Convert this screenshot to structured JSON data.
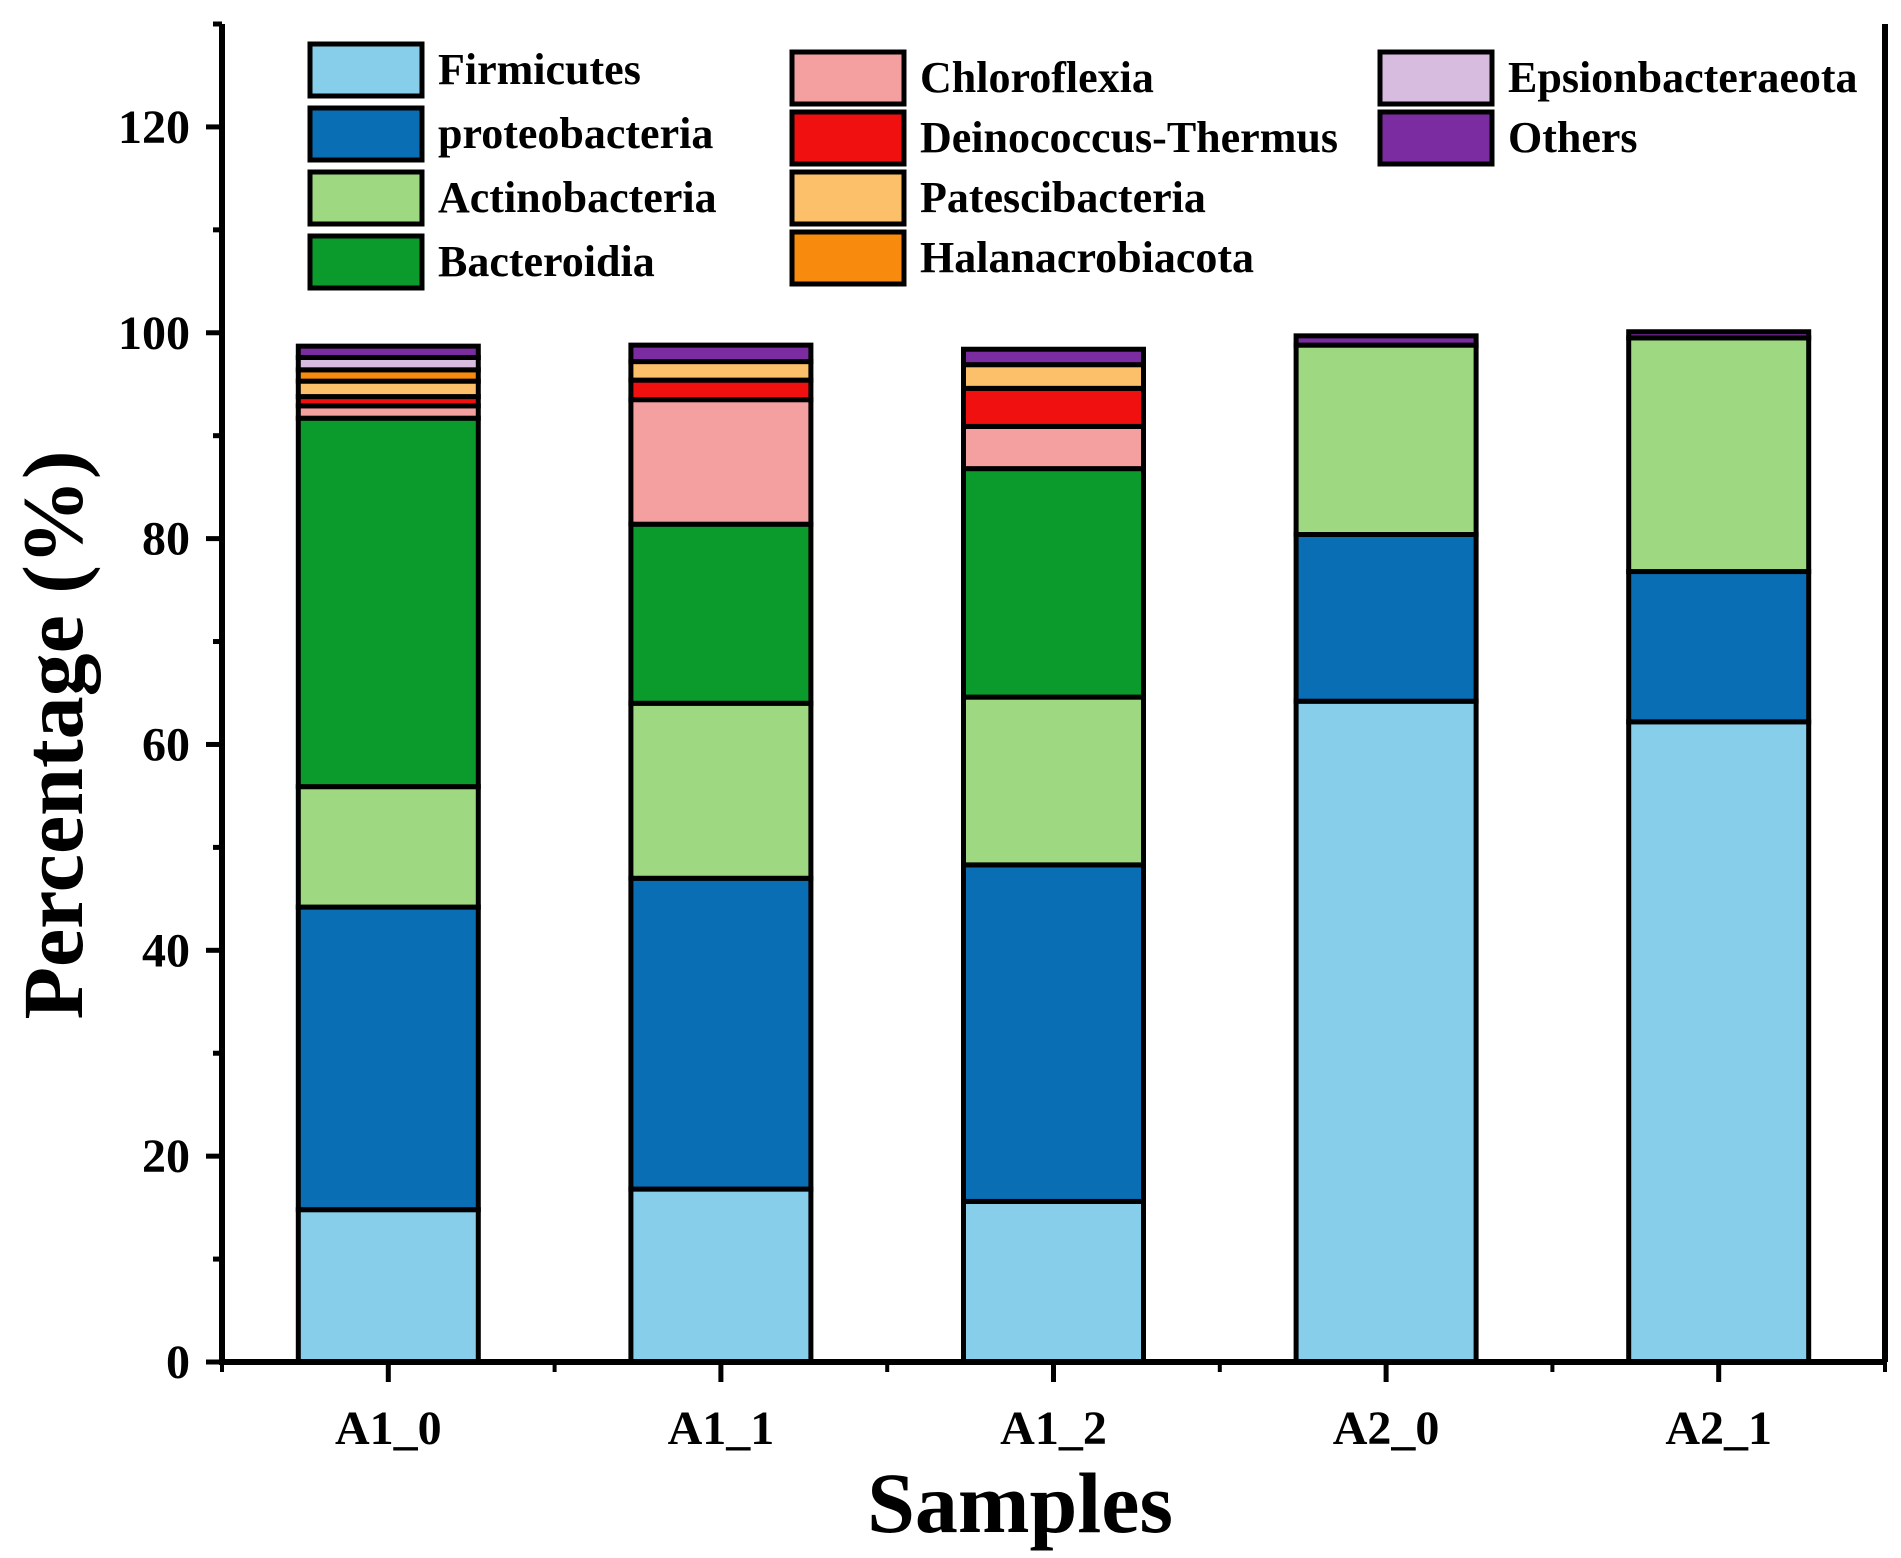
{
  "chart_data": {
    "type": "bar",
    "stacked": true,
    "title": "",
    "xlabel": "Samples",
    "ylabel": "Percentage (%)",
    "ylim": [
      0,
      130
    ],
    "yticks": [
      0,
      20,
      40,
      60,
      80,
      100,
      120
    ],
    "categories": [
      "A1_0",
      "A1_1",
      "A1_2",
      "A2_0",
      "A2_1"
    ],
    "legend_position": "top",
    "series": [
      {
        "name": "Firmicutes",
        "color": "#87CEEB",
        "values": [
          14.8,
          16.8,
          15.6,
          64.2,
          62.2
        ]
      },
      {
        "name": "proteobacteria",
        "color": "#0A6EB4",
        "values": [
          29.4,
          30.2,
          32.7,
          16.2,
          14.6
        ]
      },
      {
        "name": "Actinobacteria",
        "color": "#9ED982",
        "values": [
          11.7,
          17.0,
          16.3,
          18.4,
          22.7
        ]
      },
      {
        "name": "Bacteroidia",
        "color": "#0B9A2C",
        "values": [
          35.8,
          17.4,
          22.2,
          0.0,
          0.0
        ]
      },
      {
        "name": "Chloroflexia",
        "color": "#F5A0A0",
        "values": [
          1.2,
          12.1,
          4.1,
          0.0,
          0.0
        ]
      },
      {
        "name": "Deinococcus-Thermus",
        "color": "#F01010",
        "values": [
          0.9,
          1.9,
          3.7,
          0.0,
          0.0
        ]
      },
      {
        "name": "Patescibacteria",
        "color": "#FBC069",
        "values": [
          1.5,
          1.8,
          2.3,
          0.0,
          0.0
        ]
      },
      {
        "name": "Halanacrobiacota",
        "color": "#F88A0E",
        "values": [
          1.1,
          0.0,
          0.0,
          0.0,
          0.0
        ]
      },
      {
        "name": "Epsionbacteraeota",
        "color": "#D8BCE0",
        "values": [
          1.2,
          0.0,
          0.0,
          0.0,
          0.0
        ]
      },
      {
        "name": "Others",
        "color": "#7B2CA0",
        "values": [
          1.1,
          1.6,
          1.5,
          0.9,
          0.6
        ]
      }
    ]
  }
}
